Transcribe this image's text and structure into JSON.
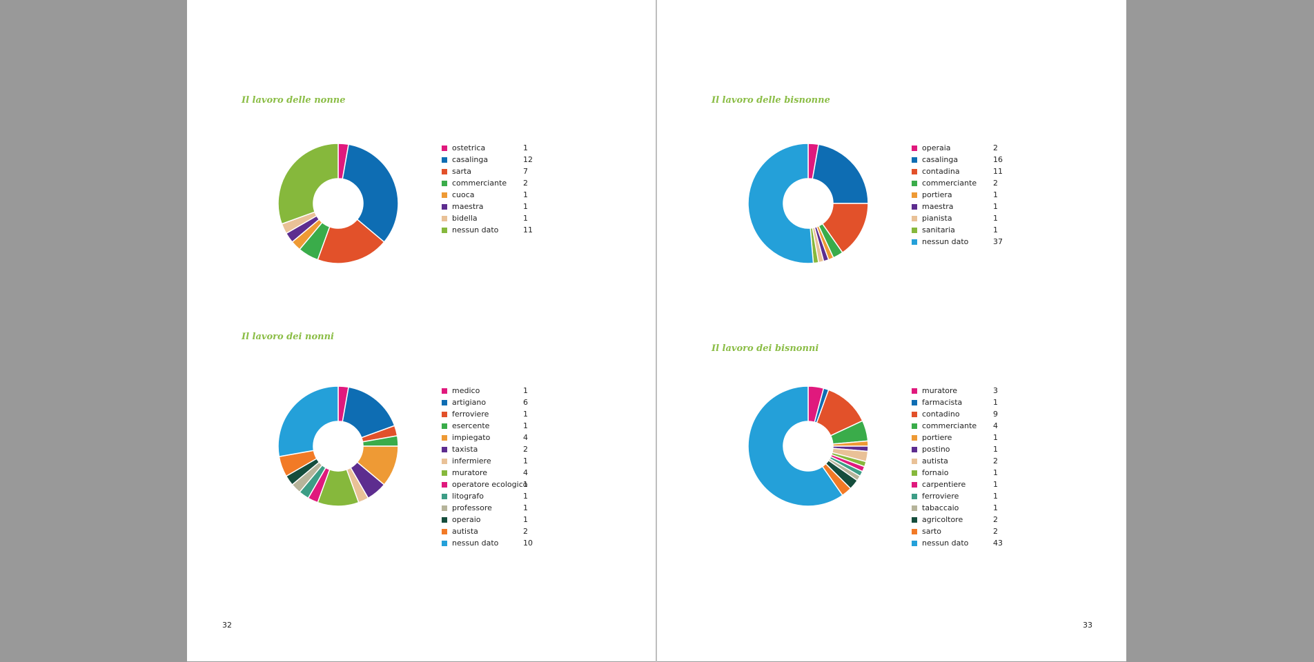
{
  "pages": {
    "left_number": "32",
    "right_number": "33"
  },
  "chart_data": [
    {
      "type": "pie",
      "title": "Il lavoro delle nonne",
      "categories": [
        "ostetrica",
        "casalinga",
        "sarta",
        "commerciante",
        "cuoca",
        "maestra",
        "bidella",
        "nessun dato"
      ],
      "values": [
        1,
        12,
        7,
        2,
        1,
        1,
        1,
        11
      ],
      "colors": [
        "#e0197d",
        "#0e6db3",
        "#e2512a",
        "#3aac4a",
        "#ee9a35",
        "#5d2d8f",
        "#e9c197",
        "#86b83c"
      ]
    },
    {
      "type": "pie",
      "title": "Il lavoro dei nonni",
      "categories": [
        "medico",
        "artigiano",
        "ferroviere",
        "esercente",
        "impiegato",
        "taxista",
        "infermiere",
        "muratore",
        "operatore ecologico",
        "litografo",
        "professore",
        "operaio",
        "autista",
        "nessun dato"
      ],
      "values": [
        1,
        6,
        1,
        1,
        4,
        2,
        1,
        4,
        1,
        1,
        1,
        1,
        2,
        10
      ],
      "colors": [
        "#e0197d",
        "#0e6db3",
        "#e2512a",
        "#3aac4a",
        "#ee9a35",
        "#5d2d8f",
        "#e9c197",
        "#86b83c",
        "#e0197d",
        "#3d9d86",
        "#b6b49a",
        "#154d3c",
        "#f27a26",
        "#24a0d9"
      ]
    },
    {
      "type": "pie",
      "title": "Il lavoro delle bisnonne",
      "categories": [
        "operaia",
        "casalinga",
        "contadina",
        "commerciante",
        "portiera",
        "maestra",
        "pianista",
        "sanitaria",
        "nessun dato"
      ],
      "values": [
        2,
        16,
        11,
        2,
        1,
        1,
        1,
        1,
        37
      ],
      "colors": [
        "#e0197d",
        "#0e6db3",
        "#e2512a",
        "#3aac4a",
        "#ee9a35",
        "#5d2d8f",
        "#e9c197",
        "#86b83c",
        "#24a0d9"
      ]
    },
    {
      "type": "pie",
      "title": "Il lavoro dei bisnonni",
      "categories": [
        "muratore",
        "farmacista",
        "contadino",
        "commerciante",
        "portiere",
        "postino",
        "autista",
        "fornaio",
        "carpentiere",
        "ferroviere",
        "tabaccaio",
        "agricoltore",
        "sarto",
        "nessun dato"
      ],
      "values": [
        3,
        1,
        9,
        4,
        1,
        1,
        2,
        1,
        1,
        1,
        1,
        2,
        2,
        43
      ],
      "colors": [
        "#e0197d",
        "#0e6db3",
        "#e2512a",
        "#3aac4a",
        "#ee9a35",
        "#5d2d8f",
        "#e9c197",
        "#86b83c",
        "#e0197d",
        "#3d9d86",
        "#b6b49a",
        "#154d3c",
        "#f27a26",
        "#24a0d9"
      ]
    }
  ]
}
